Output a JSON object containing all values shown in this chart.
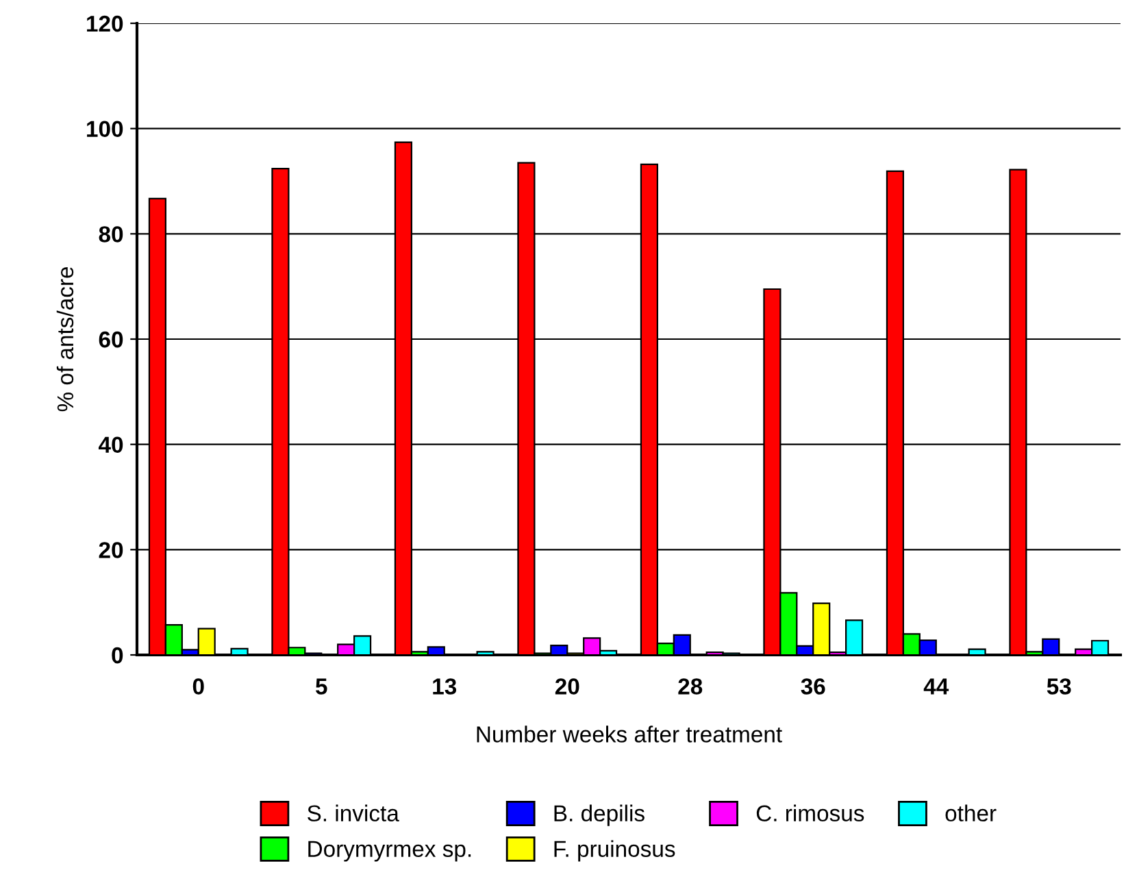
{
  "chart_data": {
    "type": "bar",
    "xlabel": "Number weeks after treatment",
    "ylabel": "% of ants/acre",
    "categories": [
      "0",
      "5",
      "13",
      "20",
      "28",
      "36",
      "44",
      "53"
    ],
    "series": [
      {
        "name": "S. invicta",
        "color": "#ff0000",
        "values": [
          86.7,
          92.4,
          97.4,
          93.5,
          93.2,
          69.5,
          91.9,
          92.2
        ]
      },
      {
        "name": "Dorymyrmex sp.",
        "color": "#00ff00",
        "values": [
          5.7,
          1.4,
          0.6,
          0.3,
          2.2,
          11.8,
          4.0,
          0.6
        ]
      },
      {
        "name": "B. depilis",
        "color": "#0000ff",
        "values": [
          1.0,
          0.3,
          1.5,
          1.8,
          3.8,
          1.7,
          2.8,
          3.0
        ]
      },
      {
        "name": "F. pruinosus",
        "color": "#ffff00",
        "values": [
          5.0,
          null,
          null,
          0.3,
          null,
          9.8,
          null,
          null
        ]
      },
      {
        "name": "C. rimosus",
        "color": "#ff00ff",
        "values": [
          null,
          2.0,
          null,
          3.2,
          0.5,
          0.5,
          null,
          1.1
        ]
      },
      {
        "name": "other",
        "color": "#00ffff",
        "values": [
          1.2,
          3.6,
          0.6,
          0.8,
          0.3,
          6.6,
          1.1,
          2.7
        ]
      }
    ],
    "ylim": [
      0,
      120
    ],
    "yticks": [
      0,
      20,
      40,
      60,
      80,
      100,
      120
    ],
    "grid": "y",
    "legend": "bottom"
  }
}
